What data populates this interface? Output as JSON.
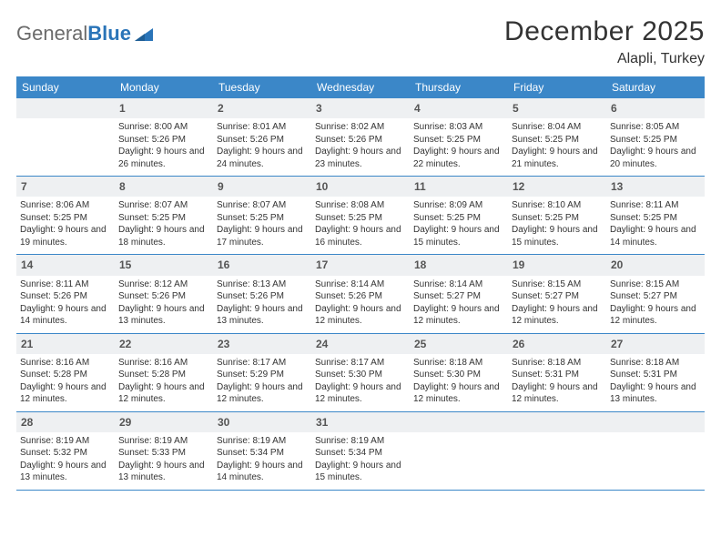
{
  "brand": {
    "part1": "General",
    "part2": "Blue"
  },
  "title": "December 2025",
  "location": "Alapli, Turkey",
  "colors": {
    "header_bg": "#3b87c8",
    "header_fg": "#ffffff",
    "daynum_bg": "#eef0f2",
    "row_border": "#3b87c8",
    "logo_gray": "#6b6b6b",
    "logo_blue": "#2a74b8"
  },
  "daysOfWeek": [
    "Sunday",
    "Monday",
    "Tuesday",
    "Wednesday",
    "Thursday",
    "Friday",
    "Saturday"
  ],
  "weeks": [
    [
      {
        "n": "",
        "sr": "",
        "ss": "",
        "dl": ""
      },
      {
        "n": "1",
        "sr": "Sunrise: 8:00 AM",
        "ss": "Sunset: 5:26 PM",
        "dl": "Daylight: 9 hours and 26 minutes."
      },
      {
        "n": "2",
        "sr": "Sunrise: 8:01 AM",
        "ss": "Sunset: 5:26 PM",
        "dl": "Daylight: 9 hours and 24 minutes."
      },
      {
        "n": "3",
        "sr": "Sunrise: 8:02 AM",
        "ss": "Sunset: 5:26 PM",
        "dl": "Daylight: 9 hours and 23 minutes."
      },
      {
        "n": "4",
        "sr": "Sunrise: 8:03 AM",
        "ss": "Sunset: 5:25 PM",
        "dl": "Daylight: 9 hours and 22 minutes."
      },
      {
        "n": "5",
        "sr": "Sunrise: 8:04 AM",
        "ss": "Sunset: 5:25 PM",
        "dl": "Daylight: 9 hours and 21 minutes."
      },
      {
        "n": "6",
        "sr": "Sunrise: 8:05 AM",
        "ss": "Sunset: 5:25 PM",
        "dl": "Daylight: 9 hours and 20 minutes."
      }
    ],
    [
      {
        "n": "7",
        "sr": "Sunrise: 8:06 AM",
        "ss": "Sunset: 5:25 PM",
        "dl": "Daylight: 9 hours and 19 minutes."
      },
      {
        "n": "8",
        "sr": "Sunrise: 8:07 AM",
        "ss": "Sunset: 5:25 PM",
        "dl": "Daylight: 9 hours and 18 minutes."
      },
      {
        "n": "9",
        "sr": "Sunrise: 8:07 AM",
        "ss": "Sunset: 5:25 PM",
        "dl": "Daylight: 9 hours and 17 minutes."
      },
      {
        "n": "10",
        "sr": "Sunrise: 8:08 AM",
        "ss": "Sunset: 5:25 PM",
        "dl": "Daylight: 9 hours and 16 minutes."
      },
      {
        "n": "11",
        "sr": "Sunrise: 8:09 AM",
        "ss": "Sunset: 5:25 PM",
        "dl": "Daylight: 9 hours and 15 minutes."
      },
      {
        "n": "12",
        "sr": "Sunrise: 8:10 AM",
        "ss": "Sunset: 5:25 PM",
        "dl": "Daylight: 9 hours and 15 minutes."
      },
      {
        "n": "13",
        "sr": "Sunrise: 8:11 AM",
        "ss": "Sunset: 5:25 PM",
        "dl": "Daylight: 9 hours and 14 minutes."
      }
    ],
    [
      {
        "n": "14",
        "sr": "Sunrise: 8:11 AM",
        "ss": "Sunset: 5:26 PM",
        "dl": "Daylight: 9 hours and 14 minutes."
      },
      {
        "n": "15",
        "sr": "Sunrise: 8:12 AM",
        "ss": "Sunset: 5:26 PM",
        "dl": "Daylight: 9 hours and 13 minutes."
      },
      {
        "n": "16",
        "sr": "Sunrise: 8:13 AM",
        "ss": "Sunset: 5:26 PM",
        "dl": "Daylight: 9 hours and 13 minutes."
      },
      {
        "n": "17",
        "sr": "Sunrise: 8:14 AM",
        "ss": "Sunset: 5:26 PM",
        "dl": "Daylight: 9 hours and 12 minutes."
      },
      {
        "n": "18",
        "sr": "Sunrise: 8:14 AM",
        "ss": "Sunset: 5:27 PM",
        "dl": "Daylight: 9 hours and 12 minutes."
      },
      {
        "n": "19",
        "sr": "Sunrise: 8:15 AM",
        "ss": "Sunset: 5:27 PM",
        "dl": "Daylight: 9 hours and 12 minutes."
      },
      {
        "n": "20",
        "sr": "Sunrise: 8:15 AM",
        "ss": "Sunset: 5:27 PM",
        "dl": "Daylight: 9 hours and 12 minutes."
      }
    ],
    [
      {
        "n": "21",
        "sr": "Sunrise: 8:16 AM",
        "ss": "Sunset: 5:28 PM",
        "dl": "Daylight: 9 hours and 12 minutes."
      },
      {
        "n": "22",
        "sr": "Sunrise: 8:16 AM",
        "ss": "Sunset: 5:28 PM",
        "dl": "Daylight: 9 hours and 12 minutes."
      },
      {
        "n": "23",
        "sr": "Sunrise: 8:17 AM",
        "ss": "Sunset: 5:29 PM",
        "dl": "Daylight: 9 hours and 12 minutes."
      },
      {
        "n": "24",
        "sr": "Sunrise: 8:17 AM",
        "ss": "Sunset: 5:30 PM",
        "dl": "Daylight: 9 hours and 12 minutes."
      },
      {
        "n": "25",
        "sr": "Sunrise: 8:18 AM",
        "ss": "Sunset: 5:30 PM",
        "dl": "Daylight: 9 hours and 12 minutes."
      },
      {
        "n": "26",
        "sr": "Sunrise: 8:18 AM",
        "ss": "Sunset: 5:31 PM",
        "dl": "Daylight: 9 hours and 12 minutes."
      },
      {
        "n": "27",
        "sr": "Sunrise: 8:18 AM",
        "ss": "Sunset: 5:31 PM",
        "dl": "Daylight: 9 hours and 13 minutes."
      }
    ],
    [
      {
        "n": "28",
        "sr": "Sunrise: 8:19 AM",
        "ss": "Sunset: 5:32 PM",
        "dl": "Daylight: 9 hours and 13 minutes."
      },
      {
        "n": "29",
        "sr": "Sunrise: 8:19 AM",
        "ss": "Sunset: 5:33 PM",
        "dl": "Daylight: 9 hours and 13 minutes."
      },
      {
        "n": "30",
        "sr": "Sunrise: 8:19 AM",
        "ss": "Sunset: 5:34 PM",
        "dl": "Daylight: 9 hours and 14 minutes."
      },
      {
        "n": "31",
        "sr": "Sunrise: 8:19 AM",
        "ss": "Sunset: 5:34 PM",
        "dl": "Daylight: 9 hours and 15 minutes."
      },
      {
        "n": "",
        "sr": "",
        "ss": "",
        "dl": ""
      },
      {
        "n": "",
        "sr": "",
        "ss": "",
        "dl": ""
      },
      {
        "n": "",
        "sr": "",
        "ss": "",
        "dl": ""
      }
    ]
  ]
}
